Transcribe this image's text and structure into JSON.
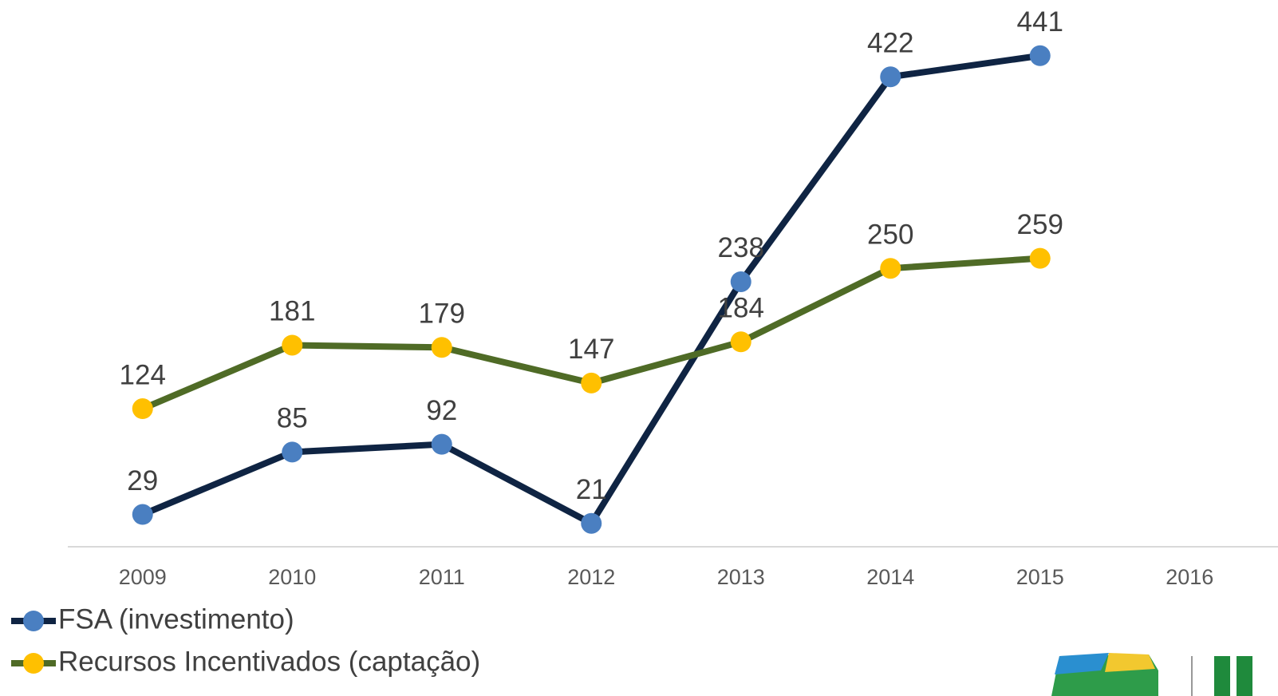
{
  "chart_data": {
    "type": "line",
    "categories": [
      "2009",
      "2010",
      "2011",
      "2012",
      "2013",
      "2014",
      "2015",
      "2016"
    ],
    "series": [
      {
        "name": "FSA (investimento)",
        "color": "#0f2443",
        "marker_color": "#4a7fc1",
        "values": [
          29,
          85,
          92,
          21,
          238,
          422,
          441,
          null
        ]
      },
      {
        "name": "Recursos Incentivados (captação)",
        "color": "#4f6b26",
        "marker_color": "#ffc000",
        "values": [
          124,
          181,
          179,
          147,
          184,
          250,
          259,
          null
        ]
      }
    ],
    "ylim": [
      0,
      491
    ],
    "legend": "bottom-left"
  }
}
